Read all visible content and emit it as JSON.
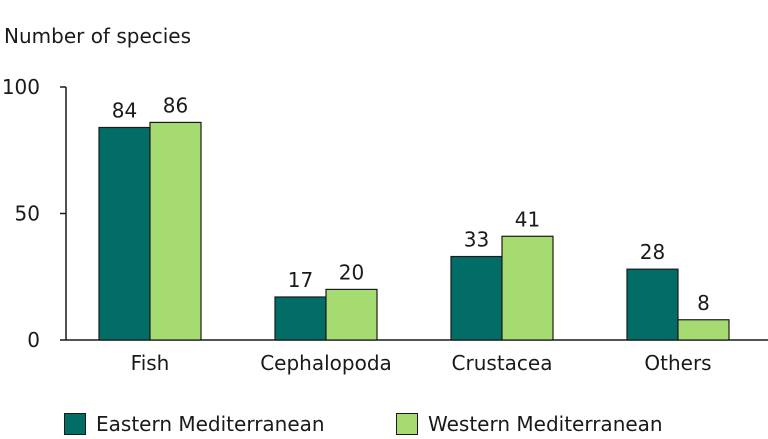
{
  "chart_data": {
    "type": "bar",
    "title": "",
    "ylabel": "Number of species",
    "xlabel": "",
    "categories": [
      "Fish",
      "Cephalopoda",
      "Crustacea",
      "Others"
    ],
    "series": [
      {
        "name": "Eastern Mediterranean",
        "values": [
          84,
          17,
          33,
          28
        ],
        "color": "#016d66"
      },
      {
        "name": "Western Mediterranean",
        "values": [
          86,
          20,
          41,
          8
        ],
        "color": "#a6db72"
      }
    ],
    "ylim": [
      0,
      100
    ],
    "yticks": [
      0,
      50,
      100
    ],
    "grid": false,
    "legend_position": "bottom"
  }
}
